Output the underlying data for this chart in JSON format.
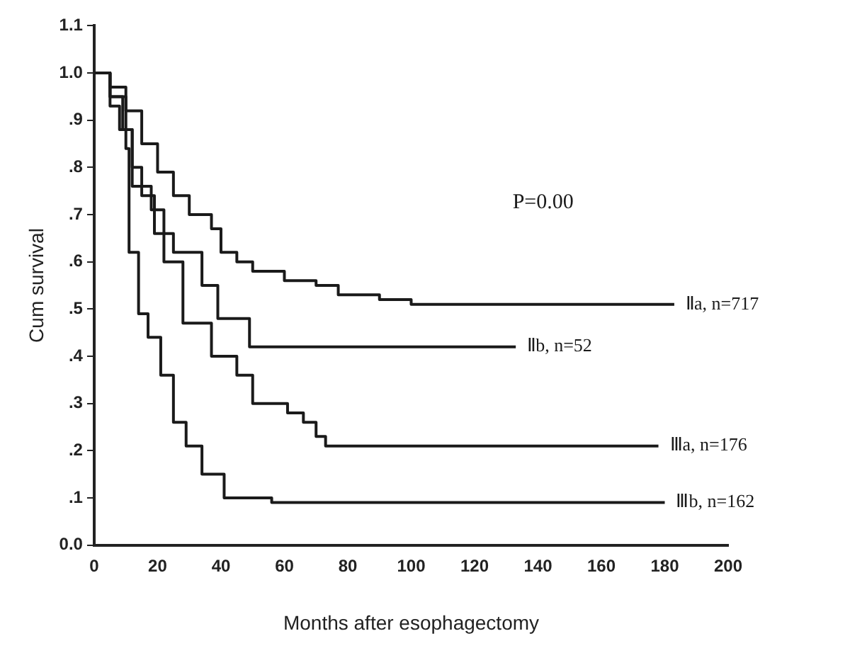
{
  "chart_data": {
    "type": "step",
    "xlabel": "Months after esophagectomy",
    "ylabel": "Cum survival",
    "xlim": [
      0,
      200
    ],
    "xticks": [
      0,
      20,
      40,
      60,
      80,
      100,
      120,
      140,
      160,
      180,
      200
    ],
    "ylim": [
      0,
      1.1
    ],
    "yticks": [
      {
        "value": 0,
        "label": "0.0"
      },
      {
        "value": 0.1,
        "label": ".1"
      },
      {
        "value": 0.2,
        "label": ".2"
      },
      {
        "value": 0.3,
        "label": ".3"
      },
      {
        "value": 0.4,
        "label": ".4"
      },
      {
        "value": 0.5,
        "label": ".5"
      },
      {
        "value": 0.6,
        "label": ".6"
      },
      {
        "value": 0.7,
        "label": ".7"
      },
      {
        "value": 0.8,
        "label": ".8"
      },
      {
        "value": 0.9,
        "label": ".9"
      },
      {
        "value": 1,
        "label": "1.0"
      },
      {
        "value": 1.1,
        "label": "1.1"
      }
    ],
    "annotations": [
      "P=0.00"
    ],
    "series": [
      {
        "name": "Ⅱa, n=717",
        "color": "#1a1a1a",
        "x": [
          0,
          5,
          10,
          15,
          20,
          25,
          30,
          37,
          40,
          45,
          50,
          60,
          70,
          77,
          90,
          100,
          183
        ],
        "values": [
          1.0,
          0.97,
          0.92,
          0.85,
          0.79,
          0.74,
          0.7,
          0.67,
          0.62,
          0.6,
          0.58,
          0.56,
          0.55,
          0.53,
          0.52,
          0.51,
          0.51
        ]
      },
      {
        "name": "Ⅱb, n=52",
        "color": "#1a1a1a",
        "x": [
          0,
          3,
          5,
          10,
          12,
          15,
          19,
          25,
          34,
          39,
          49,
          133
        ],
        "values": [
          1.0,
          1.0,
          0.95,
          0.88,
          0.8,
          0.74,
          0.66,
          0.62,
          0.55,
          0.48,
          0.42,
          0.42
        ]
      },
      {
        "name": "Ⅲa, n=176",
        "color": "#1a1a1a",
        "x": [
          0,
          5,
          9,
          12,
          18,
          22,
          28,
          37,
          45,
          50,
          61,
          66,
          70,
          73,
          178
        ],
        "values": [
          1.0,
          0.95,
          0.88,
          0.76,
          0.71,
          0.6,
          0.47,
          0.4,
          0.36,
          0.3,
          0.28,
          0.26,
          0.23,
          0.21,
          0.21
        ]
      },
      {
        "name": "Ⅲb, n=162",
        "color": "#1a1a1a",
        "x": [
          0,
          5,
          8,
          10,
          11,
          14,
          17,
          21,
          25,
          29,
          34,
          41,
          56,
          180
        ],
        "values": [
          1.0,
          0.93,
          0.88,
          0.84,
          0.62,
          0.49,
          0.44,
          0.36,
          0.26,
          0.21,
          0.15,
          0.1,
          0.09,
          0.09
        ]
      }
    ]
  }
}
